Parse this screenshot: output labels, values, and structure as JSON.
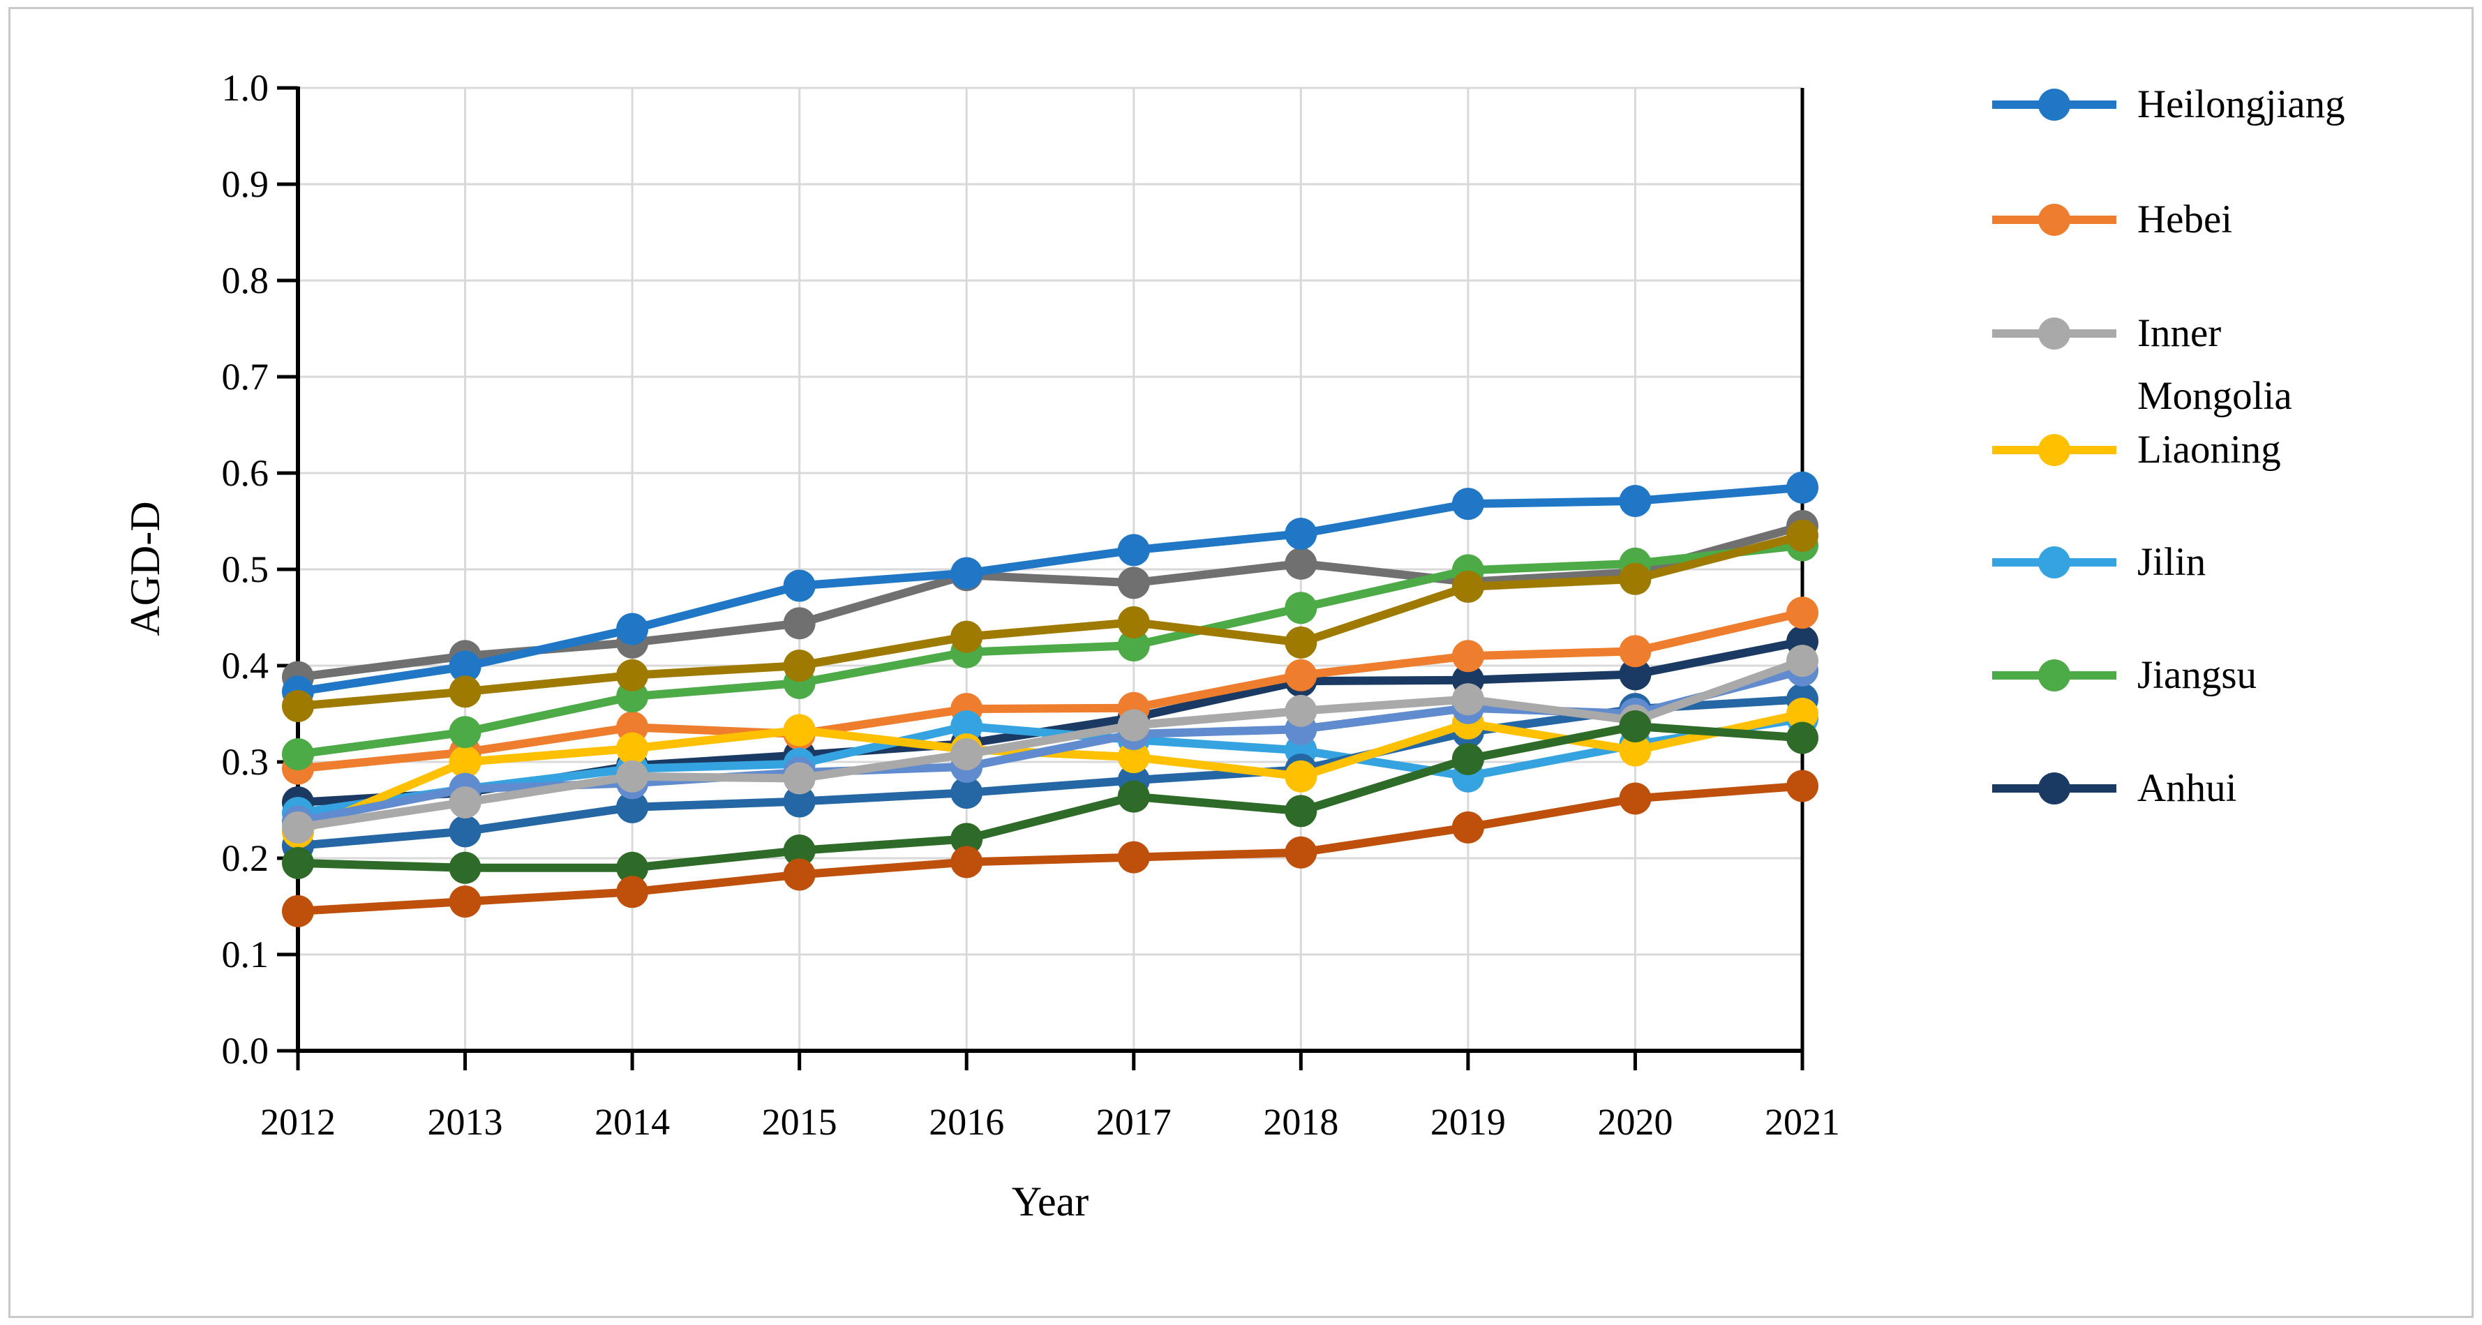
{
  "figure": {
    "background_color": "#FFFFFF",
    "border_color": "#C9C9C9"
  },
  "chart_data": {
    "type": "line",
    "title": "",
    "xlabel": "Year",
    "ylabel": "AGD-D",
    "x_categories": [
      "2012",
      "2013",
      "2014",
      "2015",
      "2016",
      "2017",
      "2018",
      "2019",
      "2020",
      "2021"
    ],
    "ylim": [
      0.0,
      1.0
    ],
    "y_tick_step": 0.1,
    "y_tick_labels": [
      "0.0",
      "0.1",
      "0.2",
      "0.3",
      "0.4",
      "0.5",
      "0.6",
      "0.7",
      "0.8",
      "0.9",
      "1.0"
    ],
    "grid": "horizontal and vertical light-gray gridlines",
    "gridline_color": "#D9D9D9",
    "axis_color": "#000000",
    "legend_position": "right",
    "marker": "filled circle",
    "series": [
      {
        "id": "anhui",
        "label": "Anhui",
        "color": "#1B3A63",
        "values": [
          0.258,
          0.268,
          0.296,
          0.307,
          0.319,
          0.346,
          0.384,
          0.385,
          0.391,
          0.425
        ]
      },
      {
        "id": "unlabeled-dark-gray",
        "label": null,
        "color": "#707070",
        "values": [
          0.388,
          0.41,
          0.424,
          0.444,
          0.494,
          0.486,
          0.506,
          0.487,
          0.497,
          0.545
        ]
      },
      {
        "id": "heilongjiang",
        "label": "Heilongjiang",
        "color": "#2077C6",
        "values": [
          0.373,
          0.399,
          0.438,
          0.483,
          0.496,
          0.52,
          0.537,
          0.568,
          0.571,
          0.585
        ]
      },
      {
        "id": "hebei",
        "label": "Hebei",
        "color": "#EF7D2E",
        "values": [
          0.293,
          0.31,
          0.336,
          0.329,
          0.355,
          0.356,
          0.39,
          0.41,
          0.415,
          0.455
        ]
      },
      {
        "id": "jilin",
        "label": "Jilin",
        "color": "#35A3DF",
        "values": [
          0.247,
          0.272,
          0.293,
          0.298,
          0.337,
          0.323,
          0.312,
          0.285,
          0.318,
          0.345
        ]
      },
      {
        "id": "unlabeled-medium-blue",
        "label": null,
        "color": "#2566A4",
        "values": [
          0.213,
          0.228,
          0.253,
          0.259,
          0.268,
          0.281,
          0.292,
          0.331,
          0.355,
          0.365
        ]
      },
      {
        "id": "liaoning",
        "label": "Liaoning",
        "color": "#FFC000",
        "values": [
          0.227,
          0.3,
          0.314,
          0.333,
          0.313,
          0.305,
          0.285,
          0.34,
          0.312,
          0.35
        ]
      },
      {
        "id": "unlabeled-cornflower-blue",
        "label": null,
        "color": "#608BCE",
        "values": [
          0.238,
          0.272,
          0.278,
          0.289,
          0.295,
          0.329,
          0.334,
          0.356,
          0.35,
          0.395
        ]
      },
      {
        "id": "inner-mongolia",
        "label": "Inner Mongolia",
        "color": "#A9A9A9",
        "values": [
          0.232,
          0.258,
          0.285,
          0.283,
          0.308,
          0.338,
          0.353,
          0.365,
          0.343,
          0.405
        ]
      },
      {
        "id": "jiangsu",
        "label": "Jiangsu",
        "color": "#4CAA47",
        "values": [
          0.308,
          0.331,
          0.368,
          0.382,
          0.414,
          0.421,
          0.46,
          0.499,
          0.506,
          0.525
        ]
      },
      {
        "id": "unlabeled-olive",
        "label": null,
        "color": "#9E7A00",
        "values": [
          0.358,
          0.373,
          0.39,
          0.4,
          0.43,
          0.445,
          0.424,
          0.482,
          0.49,
          0.535
        ]
      },
      {
        "id": "unlabeled-dark-green",
        "label": null,
        "color": "#2F6B28",
        "values": [
          0.195,
          0.19,
          0.19,
          0.208,
          0.22,
          0.264,
          0.249,
          0.303,
          0.337,
          0.325
        ]
      },
      {
        "id": "unlabeled-rust",
        "label": null,
        "color": "#BE500C",
        "values": [
          0.145,
          0.155,
          0.165,
          0.183,
          0.196,
          0.201,
          0.206,
          0.232,
          0.262,
          0.275
        ]
      }
    ]
  },
  "legend": {
    "items": [
      {
        "label_lines": [
          "Heilongjiang"
        ],
        "color": "#2077C6"
      },
      {
        "label_lines": [
          "Hebei"
        ],
        "color": "#EF7D2E"
      },
      {
        "label_lines": [
          "Inner",
          "Mongolia"
        ],
        "color": "#A9A9A9"
      },
      {
        "label_lines": [
          "Liaoning"
        ],
        "color": "#FFC000"
      },
      {
        "label_lines": [
          "Jilin"
        ],
        "color": "#35A3DF"
      },
      {
        "label_lines": [
          "Jiangsu"
        ],
        "color": "#4CAA47"
      },
      {
        "label_lines": [
          "Anhui"
        ],
        "color": "#1B3A63"
      }
    ]
  }
}
